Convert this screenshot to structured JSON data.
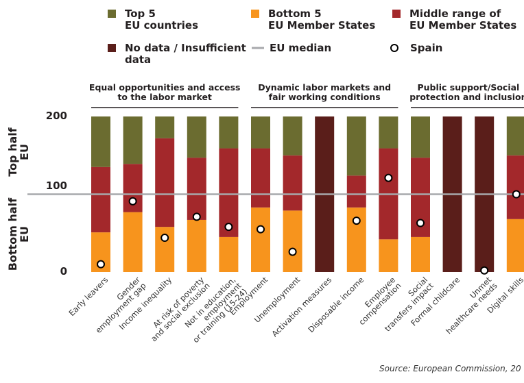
{
  "chart_data": {
    "type": "bar",
    "stacked": true,
    "categories": [
      "Early leavers",
      "Gender\nemployment gap",
      "Income inequality",
      "At risk of poverty\nand social exclusion",
      "Not in education, employment\nor training (15-24)",
      "Employment",
      "Unemployment",
      "Activation measures",
      "Disposable income",
      "Employee\ncompensation",
      "Social\ntransfers impact",
      "Formal childcare",
      "Unmet\nhealthcare needs",
      "Digital skills"
    ],
    "series": [
      {
        "name": "Top 5\nEU countries",
        "color": "#6b6c30",
        "values": [
          65,
          61,
          28,
          53,
          41,
          41,
          50,
          null,
          76,
          41,
          53,
          null,
          null,
          50
        ]
      },
      {
        "name": "Bottom 5\nEU Member States",
        "color": "#f7941d",
        "values": [
          51,
          77,
          58,
          67,
          45,
          83,
          79,
          null,
          83,
          42,
          45,
          null,
          null,
          68
        ]
      },
      {
        "name": "Middle range of\nEU Member States",
        "color": "#a3282b",
        "values": [
          84,
          62,
          114,
          80,
          114,
          76,
          71,
          null,
          41,
          117,
          102,
          null,
          null,
          82
        ]
      },
      {
        "name": "No data / Insufficient\ndata",
        "color": "#5a1e1a",
        "values": [
          null,
          null,
          null,
          null,
          null,
          null,
          null,
          200,
          null,
          null,
          null,
          200,
          200,
          null
        ]
      }
    ],
    "reference_line": {
      "name": "EU median",
      "value": 100,
      "color": "#a7a9ac"
    },
    "markers": {
      "name": "Spain",
      "values": [
        10,
        91,
        44,
        71,
        58,
        55,
        26,
        null,
        66,
        121,
        63,
        null,
        2,
        100
      ]
    },
    "groups": [
      {
        "label": "Equal opportunities and access\nto the labor market",
        "start": 0,
        "end": 4
      },
      {
        "label": "Dynamic labor markets and\nfair working conditions",
        "start": 5,
        "end": 9
      },
      {
        "label": "Public support/Social\nprotection and inclusion",
        "start": 10,
        "end": 13
      }
    ],
    "y_labels": [
      "Top half\nEU",
      "Bottom half\nEU"
    ],
    "ylim": [
      0,
      200
    ],
    "yticks": [
      0,
      100,
      200
    ],
    "source": "Source: European Commission, 20"
  }
}
